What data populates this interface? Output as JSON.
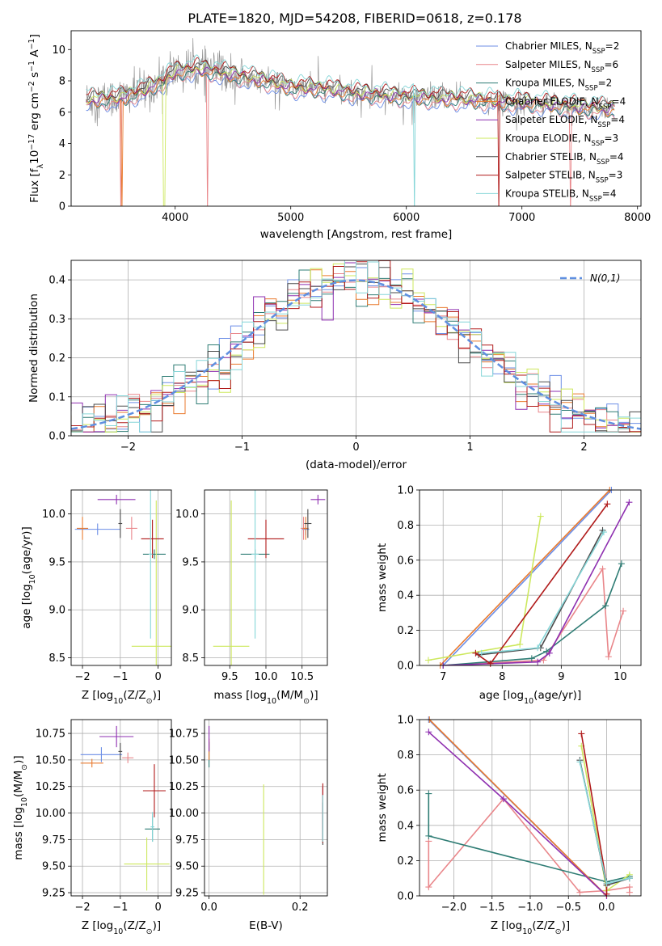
{
  "title": "PLATE=1820, MJD=54208, FIBERID=0618, z=0.178",
  "colors": {
    "Chabrier MILES": "#6c8ee6",
    "Salpeter MILES": "#e9868a",
    "Kroupa MILES": "#2e7c74",
    "Chabrier ELODIE": "#e97a2e",
    "Salpeter ELODIE": "#8e2fb0",
    "Kroupa ELODIE": "#cde85e",
    "Chabrier STELIB": "#4a4a4a",
    "Salpeter STELIB": "#b01a1a",
    "Kroupa STELIB": "#86d6d8",
    "gauss": "#5f8fe0",
    "data": "#888888"
  },
  "chart_data": [
    {
      "id": "spectrum",
      "type": "line",
      "xlabel": "wavelength [Angstrom, rest frame]",
      "ylabel": "Flux [f_λ 10^-17 erg cm^-2 s^-1 A^-1]",
      "xlim": [
        3100,
        8030
      ],
      "ylim": [
        0,
        11.2
      ],
      "xticks": [
        4000,
        5000,
        6000,
        7000,
        8000
      ],
      "yticks": [
        0,
        2,
        4,
        6,
        8,
        10
      ],
      "grid": false,
      "legend": "top-right",
      "continuum": {
        "x": [
          3230,
          3500,
          3700,
          3900,
          4000,
          4200,
          4500,
          4800,
          5000,
          5300,
          5600,
          6000,
          6300,
          6600,
          6800,
          7100,
          7400,
          7800
        ],
        "y": [
          6.8,
          6.9,
          7.3,
          8.0,
          8.6,
          8.8,
          8.4,
          8.0,
          7.6,
          7.5,
          7.2,
          7.0,
          6.9,
          6.8,
          6.7,
          6.6,
          6.4,
          6.2
        ]
      },
      "series": [
        {
          "name": "Chabrier MILES",
          "nssp": 2
        },
        {
          "name": "Salpeter MILES",
          "nssp": 6
        },
        {
          "name": "Kroupa MILES",
          "nssp": 2
        },
        {
          "name": "Chabrier ELODIE",
          "nssp": 4
        },
        {
          "name": "Salpeter ELODIE",
          "nssp": 4
        },
        {
          "name": "Kroupa ELODIE",
          "nssp": 3
        },
        {
          "name": "Chabrier STELIB",
          "nssp": 4
        },
        {
          "name": "Salpeter STELIB",
          "nssp": 3
        },
        {
          "name": "Kroupa STELIB",
          "nssp": 4
        }
      ]
    },
    {
      "id": "residuals",
      "type": "histogram",
      "xlabel": "(data-model)/error",
      "ylabel": "Normed distribution",
      "xlim": [
        -2.5,
        2.5
      ],
      "ylim": [
        0,
        0.45
      ],
      "xticks": [
        -2,
        -1,
        0,
        1,
        2
      ],
      "yticks": [
        0.0,
        0.1,
        0.2,
        0.3,
        0.4
      ],
      "grid": true,
      "legend": "top-right",
      "reference_label": "N(0,1)",
      "bin_width": 0.1
    },
    {
      "id": "age_vs_Z",
      "type": "errorbar",
      "xlabel": "Z [log10(Z/Z_sun)]",
      "ylabel": "age [log10(age/yr)]",
      "xlim": [
        -2.3,
        0.35
      ],
      "ylim": [
        8.42,
        10.25
      ],
      "xticks": [
        -2,
        -1,
        0
      ],
      "yticks": [
        8.5,
        9.0,
        9.5,
        10.0
      ],
      "grid": true,
      "points": [
        {
          "name": "Chabrier MILES",
          "x": -1.6,
          "xerr": 0.6,
          "y": 9.84,
          "yerr": 0.06
        },
        {
          "name": "Salpeter MILES",
          "x": -0.7,
          "xerr": 0.15,
          "y": 9.85,
          "yerr": 0.12
        },
        {
          "name": "Kroupa MILES",
          "x": -0.1,
          "xerr": 0.3,
          "y": 9.58,
          "yerr": 0.05
        },
        {
          "name": "Chabrier ELODIE",
          "x": -2.0,
          "xerr": 0.15,
          "y": 9.85,
          "yerr": 0.12
        },
        {
          "name": "Salpeter ELODIE",
          "x": -1.1,
          "xerr": 0.5,
          "y": 10.15,
          "yerr": 0.05
        },
        {
          "name": "Kroupa ELODIE",
          "x": -0.05,
          "xerr": 0.65,
          "y": 8.62,
          "yerr": 1.52
        },
        {
          "name": "Chabrier STELIB",
          "x": -1.0,
          "xerr": 0.05,
          "y": 9.9,
          "yerr": 0.15
        },
        {
          "name": "Salpeter STELIB",
          "x": -0.15,
          "xerr": 0.3,
          "y": 9.74,
          "yerr": 0.2
        },
        {
          "name": "Kroupa STELIB",
          "x": -0.2,
          "xerr": 0.05,
          "y": 9.58,
          "yerr": 0.88
        }
      ]
    },
    {
      "id": "age_vs_mass",
      "type": "errorbar",
      "xlabel": "mass [log10(M/M_sun)]",
      "ylabel": "",
      "xlim": [
        9.15,
        10.85
      ],
      "ylim": [
        8.42,
        10.25
      ],
      "xticks": [
        9.5,
        10.0,
        10.5
      ],
      "yticks": [
        8.5,
        9.0,
        9.5,
        10.0
      ],
      "grid": true,
      "points": [
        {
          "name": "Chabrier MILES",
          "x": 10.55,
          "xerr": 0.05,
          "y": 9.84,
          "yerr": 0.06
        },
        {
          "name": "Salpeter MILES",
          "x": 10.52,
          "xerr": 0.04,
          "y": 9.85,
          "yerr": 0.12
        },
        {
          "name": "Kroupa MILES",
          "x": 9.85,
          "xerr": 0.2,
          "y": 9.58,
          "yerr": 0.05
        },
        {
          "name": "Chabrier ELODIE",
          "x": 10.55,
          "xerr": 0.04,
          "y": 9.85,
          "yerr": 0.12
        },
        {
          "name": "Salpeter ELODIE",
          "x": 10.72,
          "xerr": 0.1,
          "y": 10.15,
          "yerr": 0.05
        },
        {
          "name": "Kroupa ELODIE",
          "x": 9.52,
          "xerr": 0.25,
          "y": 8.62,
          "yerr": 1.52
        },
        {
          "name": "Chabrier STELIB",
          "x": 10.58,
          "xerr": 0.05,
          "y": 9.9,
          "yerr": 0.15
        },
        {
          "name": "Salpeter STELIB",
          "x": 10.0,
          "xerr": 0.25,
          "y": 9.74,
          "yerr": 0.2
        },
        {
          "name": "Kroupa STELIB",
          "x": 9.85,
          "xerr": 0.05,
          "y": 9.58,
          "yerr": 0.88
        }
      ]
    },
    {
      "id": "massweight_vs_age",
      "type": "line",
      "xlabel": "age [log10(age/yr)]",
      "ylabel": "mass weight",
      "xlim": [
        6.6,
        10.35
      ],
      "ylim": [
        0,
        1
      ],
      "xticks": [
        7,
        8,
        9,
        10
      ],
      "yticks": [
        0.0,
        0.2,
        0.4,
        0.6,
        0.8,
        1.0
      ],
      "grid": true,
      "series": [
        {
          "name": "Chabrier MILES",
          "x": [
            7.0,
            9.85
          ],
          "y": [
            0.0,
            1.0
          ]
        },
        {
          "name": "Salpeter MILES",
          "x": [
            7.0,
            8.7,
            9.7,
            9.8,
            10.05
          ],
          "y": [
            0.0,
            0.03,
            0.55,
            0.05,
            0.31
          ]
        },
        {
          "name": "Kroupa MILES",
          "x": [
            7.0,
            8.5,
            8.75,
            9.75,
            10.02
          ],
          "y": [
            0.0,
            0.04,
            0.08,
            0.34,
            0.58
          ]
        },
        {
          "name": "Chabrier ELODIE",
          "x": [
            6.95,
            9.82
          ],
          "y": [
            0.0,
            1.0
          ]
        },
        {
          "name": "Salpeter ELODIE",
          "x": [
            7.0,
            8.6,
            8.8,
            10.15
          ],
          "y": [
            0.0,
            0.02,
            0.07,
            0.93
          ]
        },
        {
          "name": "Kroupa ELODIE",
          "x": [
            6.75,
            8.3,
            8.65
          ],
          "y": [
            0.03,
            0.12,
            0.85
          ]
        },
        {
          "name": "Chabrier STELIB",
          "x": [
            7.6,
            8.65,
            9.7
          ],
          "y": [
            0.06,
            0.1,
            0.77
          ]
        },
        {
          "name": "Salpeter STELIB",
          "x": [
            7.55,
            7.8,
            9.78
          ],
          "y": [
            0.07,
            0.01,
            0.92
          ]
        },
        {
          "name": "Kroupa STELIB",
          "x": [
            7.65,
            8.6,
            9.72
          ],
          "y": [
            0.07,
            0.1,
            0.76
          ]
        }
      ]
    },
    {
      "id": "mass_vs_Z",
      "type": "errorbar",
      "xlabel": "Z [log10(Z/Z_sun)]",
      "ylabel": "mass [log10(M/M_sun)]",
      "xlim": [
        -2.3,
        0.35
      ],
      "ylim": [
        9.22,
        10.88
      ],
      "xticks": [
        -2,
        -1,
        0
      ],
      "yticks": [
        9.25,
        9.5,
        9.75,
        10.0,
        10.25,
        10.5,
        10.75
      ],
      "grid": true,
      "points": [
        {
          "name": "Chabrier MILES",
          "x": -1.5,
          "xerr": 0.55,
          "y": 10.55,
          "yerr": 0.07
        },
        {
          "name": "Salpeter MILES",
          "x": -0.8,
          "xerr": 0.15,
          "y": 10.52,
          "yerr": 0.05
        },
        {
          "name": "Kroupa MILES",
          "x": -0.15,
          "xerr": 0.2,
          "y": 9.85,
          "yerr": 0.12
        },
        {
          "name": "Chabrier ELODIE",
          "x": -1.75,
          "xerr": 0.3,
          "y": 10.47,
          "yerr": 0.04
        },
        {
          "name": "Salpeter ELODIE",
          "x": -1.1,
          "xerr": 0.45,
          "y": 10.72,
          "yerr": 0.1
        },
        {
          "name": "Kroupa ELODIE",
          "x": -0.3,
          "xerr": 0.6,
          "y": 9.52,
          "yerr": 0.25
        },
        {
          "name": "Chabrier STELIB",
          "x": -1.0,
          "xerr": 0.05,
          "y": 10.58,
          "yerr": 0.08
        },
        {
          "name": "Salpeter STELIB",
          "x": -0.1,
          "xerr": 0.3,
          "y": 10.21,
          "yerr": 0.25
        },
        {
          "name": "Kroupa STELIB",
          "x": -0.15,
          "xerr": 0.05,
          "y": 9.87,
          "yerr": 0.14
        }
      ]
    },
    {
      "id": "mass_vs_ebv",
      "type": "errorbar",
      "xlabel": "E(B-V)",
      "ylabel": "",
      "xlim": [
        -0.01,
        0.26
      ],
      "ylim": [
        9.22,
        10.88
      ],
      "xticks": [
        0.0,
        0.2
      ],
      "yticks": [
        9.25,
        9.5,
        9.75,
        10.0,
        10.25,
        10.5,
        10.75
      ],
      "grid": true,
      "points": [
        {
          "name": "Chabrier MILES",
          "x": 0.25,
          "xerr": 0.0,
          "y": 10.0,
          "yerr": 0.25
        },
        {
          "name": "Salpeter MILES",
          "x": 0.25,
          "xerr": 0.0,
          "y": 10.05,
          "yerr": 0.2
        },
        {
          "name": "Kroupa MILES",
          "x": 0.0,
          "xerr": 0.0,
          "y": 10.55,
          "yerr": 0.12
        },
        {
          "name": "Chabrier ELODIE",
          "x": 0.0,
          "xerr": 0.0,
          "y": 10.6,
          "yerr": 0.1
        },
        {
          "name": "Salpeter ELODIE",
          "x": 0.0,
          "xerr": 0.0,
          "y": 10.7,
          "yerr": 0.12
        },
        {
          "name": "Kroupa ELODIE",
          "x": 0.12,
          "xerr": 0.0,
          "y": 9.75,
          "yerr": 0.52
        },
        {
          "name": "Chabrier STELIB",
          "x": 0.25,
          "xerr": 0.0,
          "y": 9.9,
          "yerr": 0.2
        },
        {
          "name": "Salpeter STELIB",
          "x": 0.25,
          "xerr": 0.0,
          "y": 10.0,
          "yerr": 0.28
        },
        {
          "name": "Kroupa STELIB",
          "x": 0.25,
          "xerr": 0.0,
          "y": 9.95,
          "yerr": 0.22
        }
      ]
    },
    {
      "id": "massweight_vs_Z",
      "type": "line",
      "xlabel": "Z [log10(Z/Z_sun)]",
      "ylabel": "mass weight",
      "xlim": [
        -2.45,
        0.45
      ],
      "ylim": [
        0,
        1
      ],
      "xticks": [
        -2.0,
        -1.5,
        -1.0,
        -0.5,
        0.0
      ],
      "yticks": [
        0.0,
        0.2,
        0.4,
        0.6,
        0.8,
        1.0
      ],
      "grid": true,
      "series": [
        {
          "name": "Chabrier MILES",
          "x": [
            -2.33,
            0.0
          ],
          "y": [
            1.0,
            0.0
          ]
        },
        {
          "name": "Salpeter MILES",
          "x": [
            -2.33,
            -2.33,
            -1.35,
            -0.35,
            0.0,
            0.3,
            0.3
          ],
          "y": [
            0.31,
            0.05,
            0.55,
            0.02,
            0.03,
            0.05,
            0.02
          ]
        },
        {
          "name": "Kroupa MILES",
          "x": [
            -2.33,
            -2.33,
            0.0,
            0.3
          ],
          "y": [
            0.58,
            0.34,
            0.08,
            0.11
          ]
        },
        {
          "name": "Chabrier ELODIE",
          "x": [
            -2.32,
            0.0
          ],
          "y": [
            1.0,
            0.0
          ]
        },
        {
          "name": "Salpeter ELODIE",
          "x": [
            -2.33,
            -1.35,
            0.0
          ],
          "y": [
            0.93,
            0.55,
            0.0
          ]
        },
        {
          "name": "Kroupa ELODIE",
          "x": [
            -0.33,
            0.0,
            0.3
          ],
          "y": [
            0.85,
            0.03,
            0.12
          ]
        },
        {
          "name": "Chabrier STELIB",
          "x": [
            -0.35,
            0.0,
            0.3
          ],
          "y": [
            0.77,
            0.06,
            0.1
          ]
        },
        {
          "name": "Salpeter STELIB",
          "x": [
            -0.33,
            0.0,
            0.0
          ],
          "y": [
            0.92,
            0.07,
            0.01
          ]
        },
        {
          "name": "Kroupa STELIB",
          "x": [
            -0.35,
            0.0,
            0.3
          ],
          "y": [
            0.76,
            0.07,
            0.1
          ]
        }
      ]
    }
  ]
}
